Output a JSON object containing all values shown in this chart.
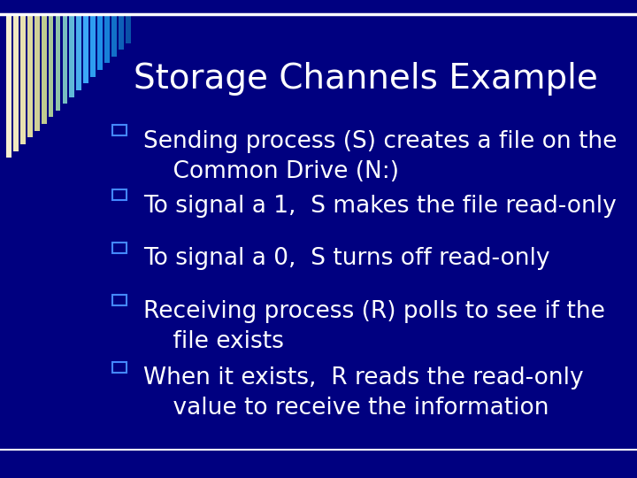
{
  "title": "Storage Channels Example",
  "background_color": "#000080",
  "title_color": "#ffffff",
  "title_fontsize": 28,
  "bullet_color": "#ffffff",
  "bullet_fontsize": 19,
  "bullet_marker_color": "#4488ff",
  "top_line_color": "#ffffff",
  "bottom_line_color": "#ffffff",
  "bullets": [
    "Sending process (S) creates a file on the\n    Common Drive (N:)",
    "To signal a 1,  S makes the file read-only",
    "To signal a 0,  S turns off read-only",
    "Receiving process (R) polls to see if the\n    file exists",
    "When it exists,  R reads the read-only\n    value to receive the information"
  ],
  "bar_colors": [
    "#f5f0d0",
    "#f0eac0",
    "#e8e2b0",
    "#dddaa0",
    "#d0d098",
    "#c0cc90",
    "#a8c898",
    "#90c4a8",
    "#78bec0",
    "#60b8d8",
    "#4aafec",
    "#3ca8f8",
    "#2e9ef0",
    "#2090e8",
    "#1880d8",
    "#1270c8",
    "#0e60b8",
    "#0a52a8"
  ]
}
